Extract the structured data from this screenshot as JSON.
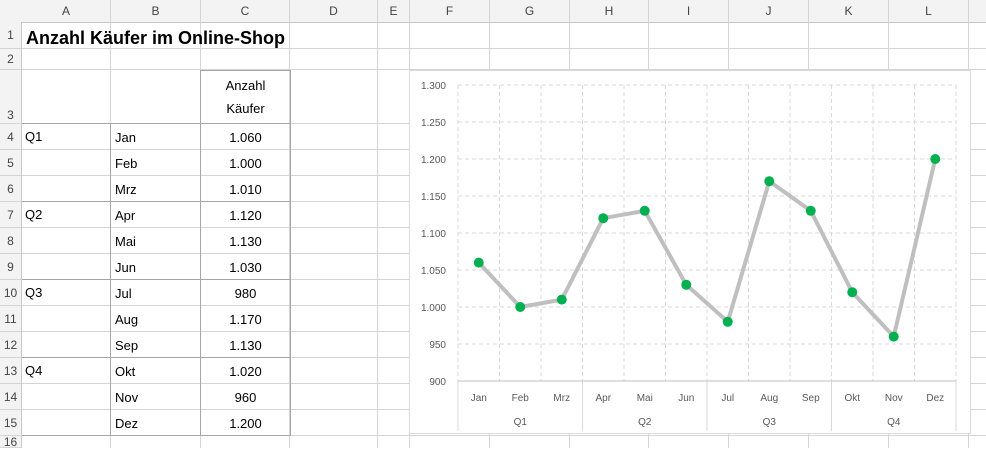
{
  "columns": [
    "A",
    "B",
    "C",
    "D",
    "E",
    "F",
    "G",
    "H",
    "I",
    "J",
    "K",
    "L"
  ],
  "rows": [
    "1",
    "2",
    "3",
    "4",
    "5",
    "6",
    "7",
    "8",
    "9",
    "10",
    "11",
    "12",
    "13",
    "14",
    "15",
    "16"
  ],
  "sheet": {
    "title": "Anzahl Käufer im Online-Shop",
    "header_line1": "Anzahl",
    "header_line2": "Käufer",
    "quarters": [
      "Q1",
      "Q2",
      "Q3",
      "Q4"
    ],
    "months": [
      "Jan",
      "Feb",
      "Mrz",
      "Apr",
      "Mai",
      "Jun",
      "Jul",
      "Aug",
      "Sep",
      "Okt",
      "Nov",
      "Dez"
    ],
    "values": [
      "1.060",
      "1.000",
      "1.010",
      "1.120",
      "1.130",
      "1.030",
      "980",
      "1.170",
      "1.130",
      "1.020",
      "960",
      "1.200"
    ]
  },
  "chart_data": {
    "type": "line",
    "categories": [
      "Jan",
      "Feb",
      "Mrz",
      "Apr",
      "Mai",
      "Jun",
      "Jul",
      "Aug",
      "Sep",
      "Okt",
      "Nov",
      "Dez"
    ],
    "groups": [
      "Q1",
      "Q2",
      "Q3",
      "Q4"
    ],
    "values": [
      1060,
      1000,
      1010,
      1120,
      1130,
      1030,
      980,
      1170,
      1130,
      1020,
      960,
      1200
    ],
    "ylim": [
      900,
      1300
    ],
    "yticks": [
      "900",
      "950",
      "1.000",
      "1.050",
      "1.100",
      "1.150",
      "1.200",
      "1.250",
      "1.300"
    ],
    "grid": true,
    "line_color": "#bfbfbf",
    "marker_color": "#00b050"
  }
}
